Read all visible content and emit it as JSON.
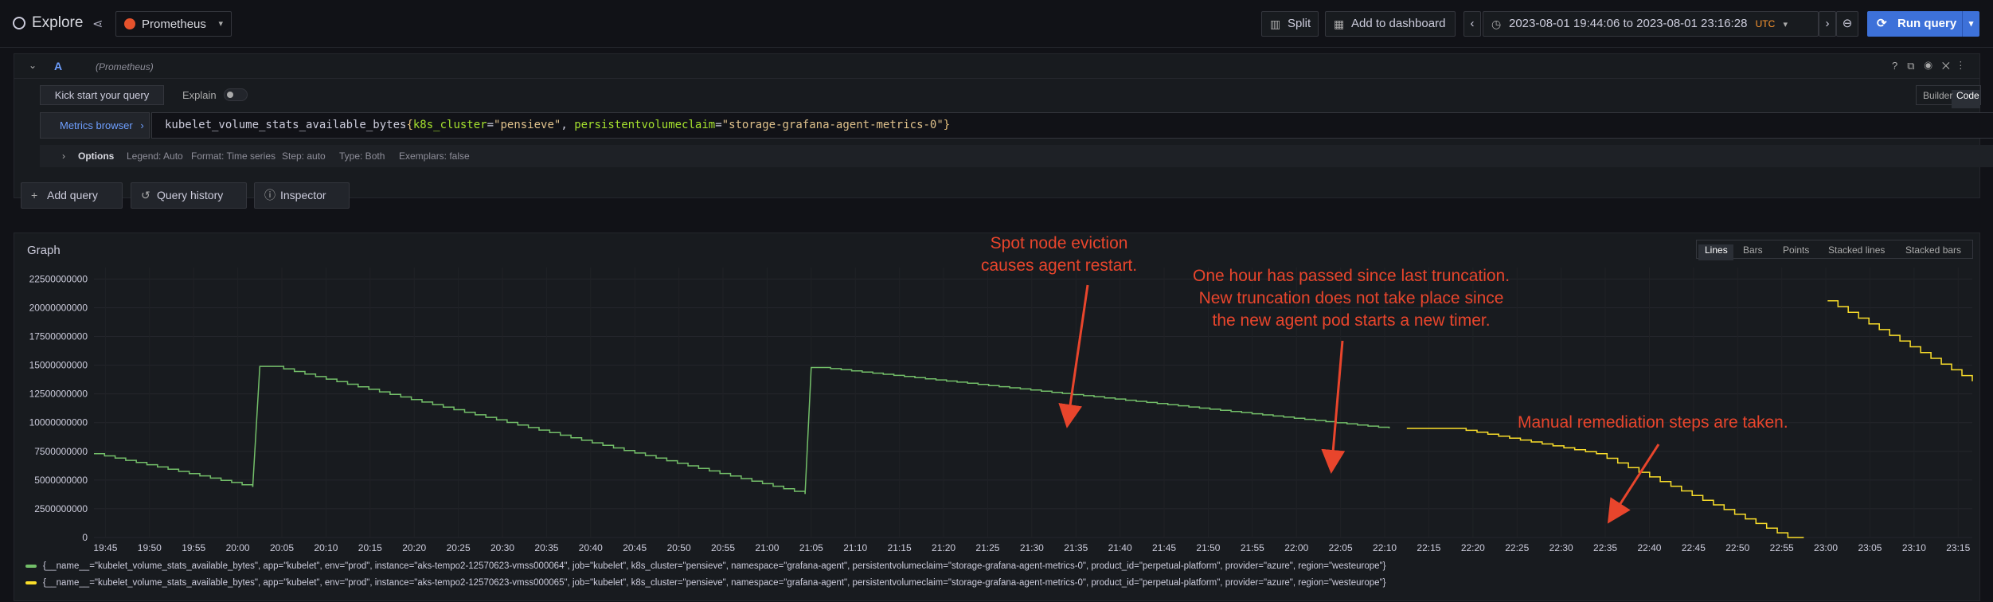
{
  "topbar": {
    "title": "Explore",
    "datasource": "Prometheus",
    "split_label": "Split",
    "add_dashboard_label": "Add to dashboard",
    "time_range": "2023-08-01 19:44:06 to 2023-08-01 23:16:28",
    "timezone": "UTC",
    "run_query_label": "Run query",
    "accent_color": "#3d71d9"
  },
  "query": {
    "letter": "A",
    "datasource_hint": "(Prometheus)",
    "kick_start_label": "Kick start your query",
    "explain_label": "Explain",
    "builder_label": "Builder",
    "code_label": "Code",
    "metrics_browser_label": "Metrics browser",
    "expr_metric": "kubelet_volume_stats_available_bytes",
    "expr_open": "{",
    "expr_k1": "k8s_cluster",
    "expr_eq1": "=",
    "expr_v1": "\"pensieve\"",
    "expr_sep": ", ",
    "expr_k2": "persistentvolumeclaim",
    "expr_eq2": "=",
    "expr_v2": "\"storage-grafana-agent-metrics-0\"",
    "expr_close": "}",
    "options": {
      "label": "Options",
      "legend": "Legend: Auto",
      "format": "Format: Time series",
      "step": "Step: auto",
      "type": "Type: Both",
      "exemplars": "Exemplars: false"
    }
  },
  "actions": {
    "add_query": "Add query",
    "query_history": "Query history",
    "inspector": "Inspector"
  },
  "graph": {
    "title": "Graph",
    "viz_options": [
      "Lines",
      "Bars",
      "Points",
      "Stacked lines",
      "Stacked bars"
    ],
    "selected_viz": "Lines"
  },
  "annotations": {
    "a1_line1": "Spot node eviction",
    "a1_line2": "causes agent restart.",
    "a2_line1": "One hour has passed since last truncation.",
    "a2_line2": "New truncation does not take place since",
    "a2_line3": "the new agent pod starts a new timer.",
    "a3_line1": "Manual remediation steps are taken.",
    "color": "#e8452c"
  },
  "chart_data": {
    "type": "line",
    "x_unit": "time (HH:MM)",
    "y_ticks": [
      "22500000000",
      "20000000000",
      "17500000000",
      "15000000000",
      "12500000000",
      "10000000000",
      "7500000000",
      "5000000000",
      "2500000000",
      "0"
    ],
    "x_ticks": [
      "19:45",
      "19:50",
      "19:55",
      "20:00",
      "20:05",
      "20:10",
      "20:15",
      "20:20",
      "20:25",
      "20:30",
      "20:35",
      "20:40",
      "20:45",
      "20:50",
      "20:55",
      "21:00",
      "21:05",
      "21:10",
      "21:15",
      "21:20",
      "21:25",
      "21:30",
      "21:35",
      "21:40",
      "21:45",
      "21:50",
      "21:55",
      "22:00",
      "22:05",
      "22:10",
      "22:15",
      "22:20",
      "22:25",
      "22:30",
      "22:35",
      "22:40",
      "22:45",
      "22:50",
      "22:55",
      "23:00",
      "23:05",
      "23:10",
      "23:15"
    ],
    "ylim": [
      0,
      23500000000
    ],
    "x_range_min": [
      -1.3,
      211.6
    ],
    "series": [
      {
        "name": "{__name__=\"kubelet_volume_stats_available_bytes\", app=\"kubelet\", env=\"prod\", instance=\"aks-tempo2-12570623-vmss000064\", job=\"kubelet\", k8s_cluster=\"pensieve\", namespace=\"grafana-agent\", persistentvolumeclaim=\"storage-grafana-agent-metrics-0\", product_id=\"perpetual-platform\", provider=\"azure\", region=\"westeurope\"}",
        "color": "#73bf69",
        "segments": [
          [
            [
              -1.3,
              7300000000
            ],
            [
              16.7,
              4400000000
            ]
          ],
          [
            [
              16.7,
              4400000000
            ],
            [
              17.5,
              14900000000
            ],
            [
              19,
              14900000000
            ],
            [
              79.3,
              3800000000
            ]
          ],
          [
            [
              79.3,
              3800000000
            ],
            [
              80,
              14800000000
            ],
            [
              81,
              14800000000
            ],
            [
              145.5,
              9500000000
            ]
          ]
        ]
      },
      {
        "name": "{__name__=\"kubelet_volume_stats_available_bytes\", app=\"kubelet\", env=\"prod\", instance=\"aks-tempo2-12570623-vmss000065\", job=\"kubelet\", k8s_cluster=\"pensieve\", namespace=\"grafana-agent\", persistentvolumeclaim=\"storage-grafana-agent-metrics-0\", product_id=\"perpetual-platform\", provider=\"azure\", region=\"westeurope\"}",
        "color": "#fade2a",
        "segments": [
          [
            [
              147.5,
              9500000000
            ],
            [
              153,
              9500000000
            ],
            [
              169,
              7300000000
            ],
            [
              190.7,
              0
            ],
            [
              192.5,
              0
            ]
          ],
          [
            [
              195.2,
              20600000000
            ],
            [
              211.6,
              13600000000
            ]
          ]
        ]
      }
    ]
  }
}
